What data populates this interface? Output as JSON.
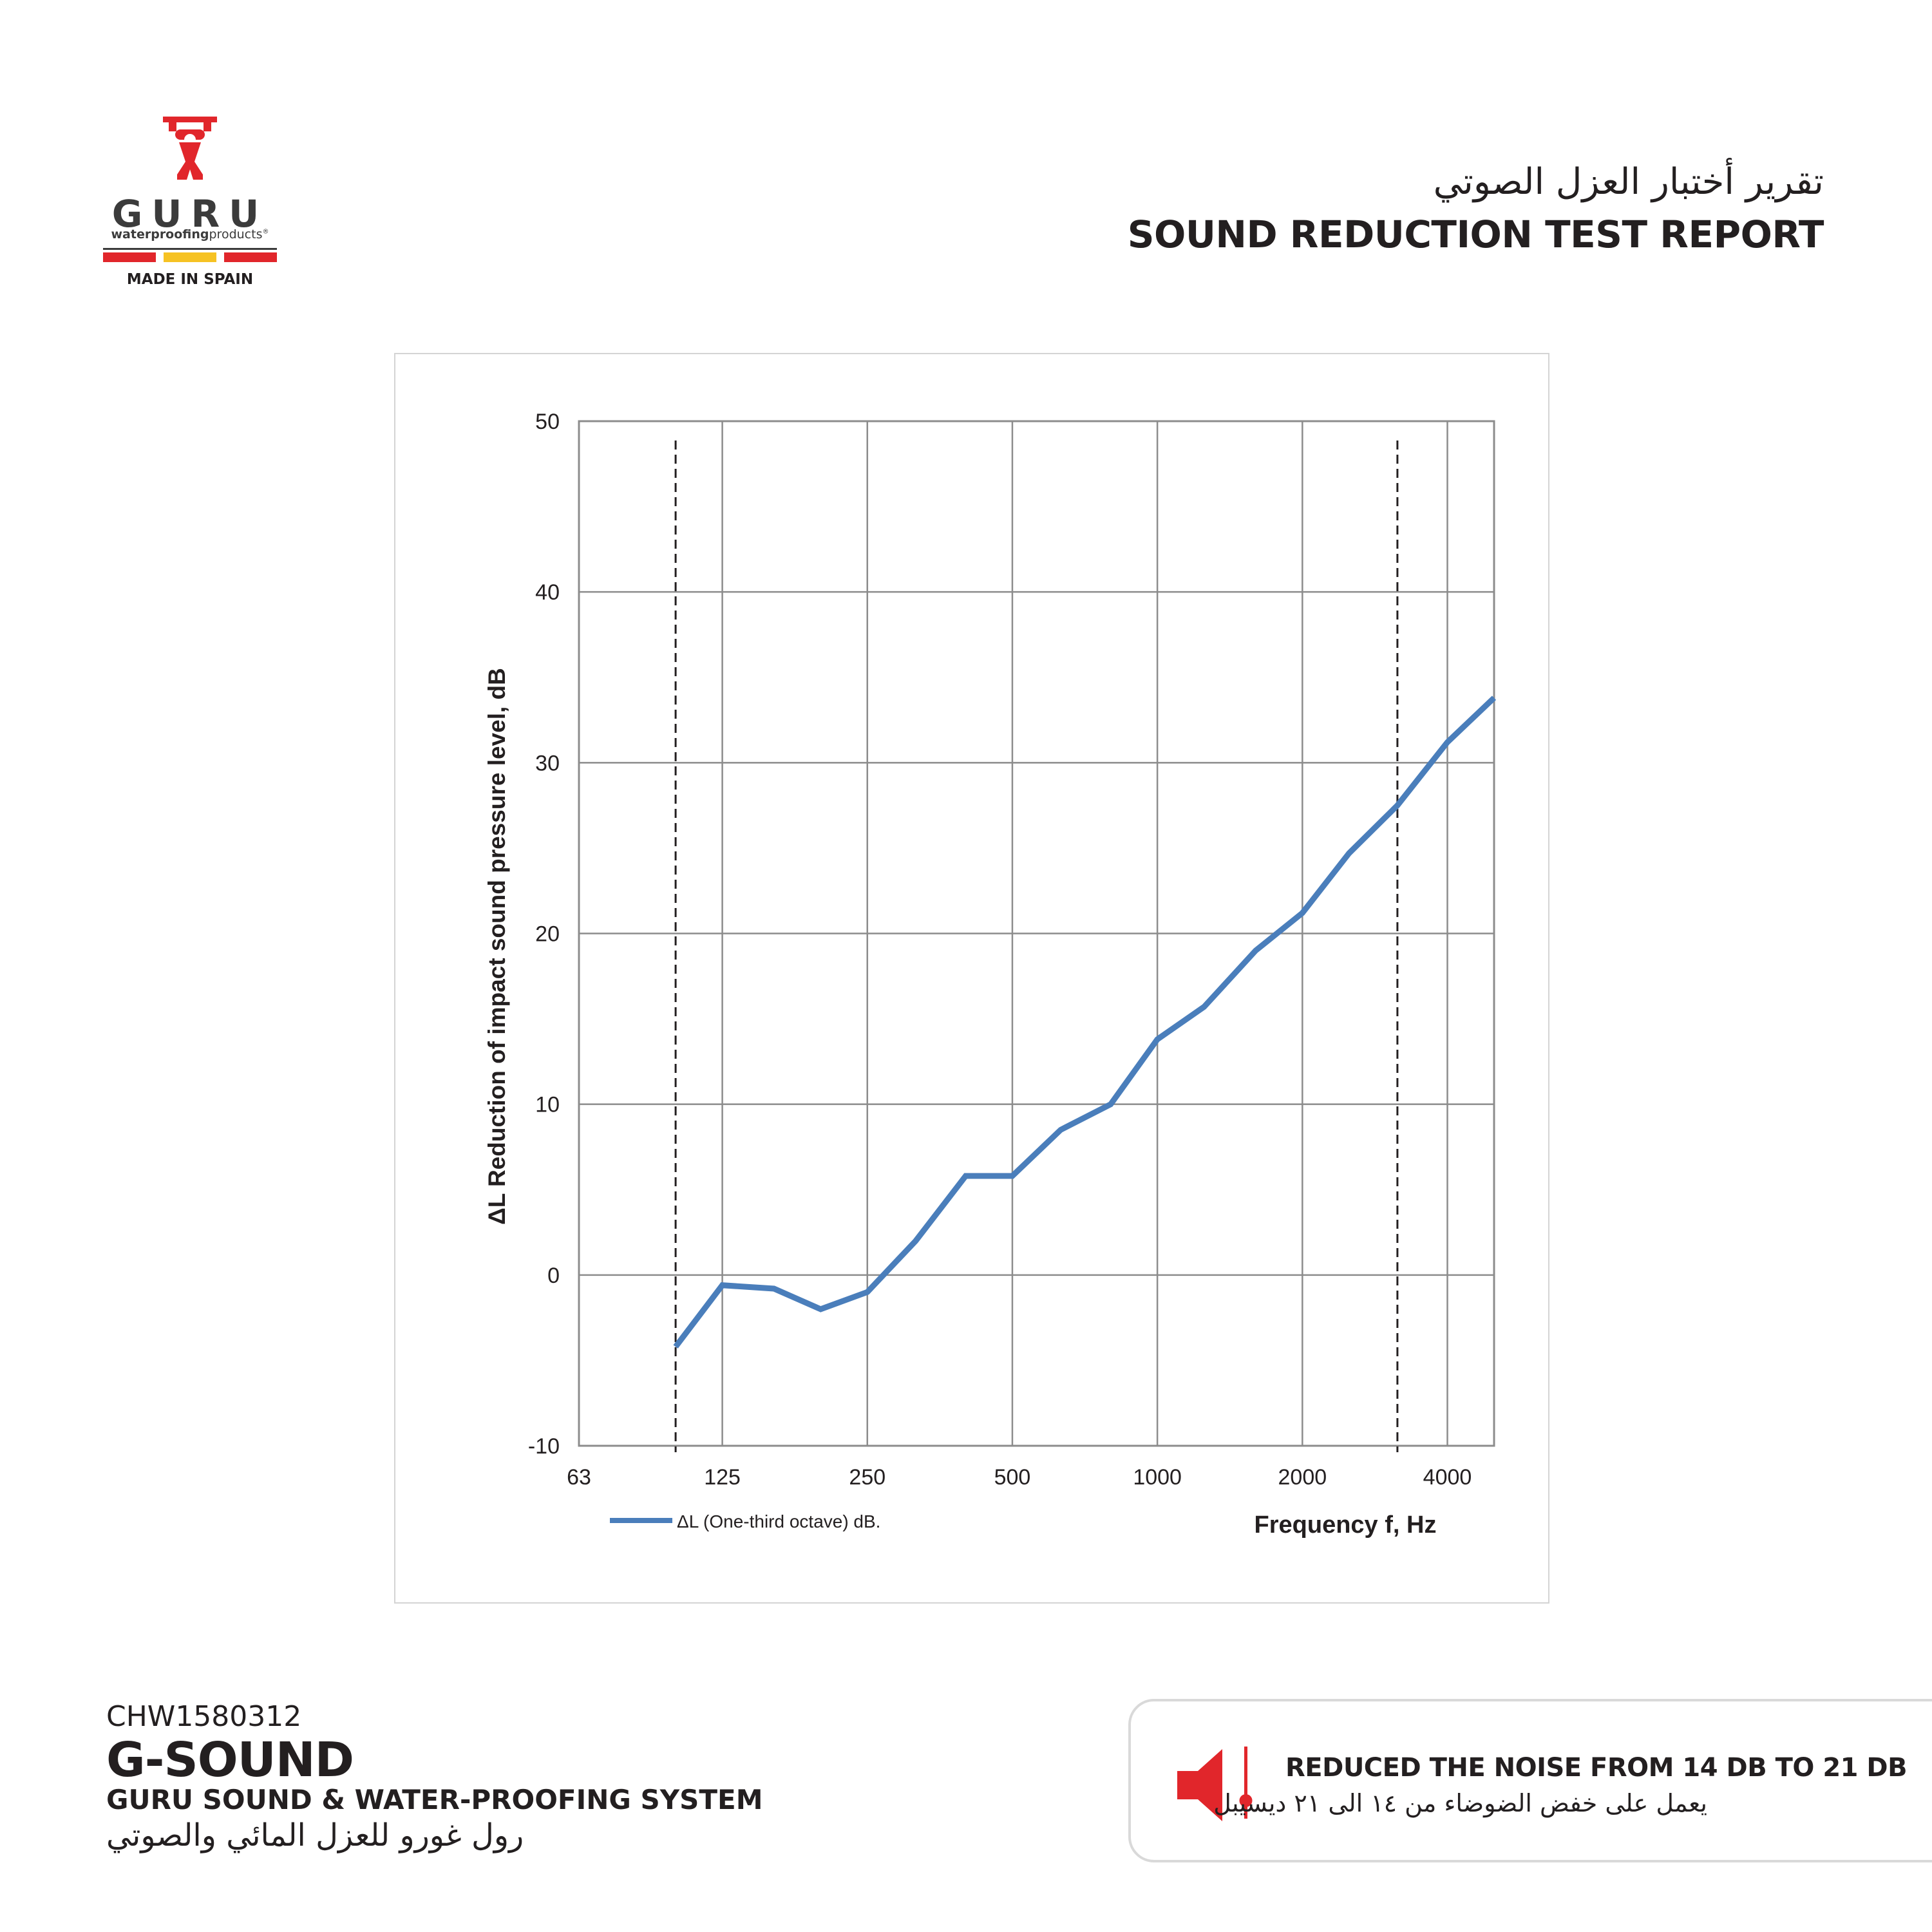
{
  "brand": {
    "name": "GURU",
    "tagline_bold": "waterproofing",
    "tagline_rest": "products",
    "origin": "MADE IN SPAIN",
    "colors": {
      "red": "#e1262b",
      "yellow": "#f6c223",
      "dark": "#3b3b3b"
    }
  },
  "header": {
    "title_ar": "تقرير أختبار العزل الصوتي",
    "title_en": "SOUND REDUCTION TEST REPORT"
  },
  "chart_data": {
    "type": "line",
    "xlabel": "Frequency f, Hz",
    "ylabel": "ΔL  Reduction of impact sound pressure level, dB",
    "x_scale": "log",
    "xlim": [
      63,
      5000
    ],
    "ylim": [
      -10,
      50
    ],
    "x_ticks": [
      "63",
      "125",
      "250",
      "500",
      "1000",
      "2000",
      "4000"
    ],
    "y_ticks": [
      "50",
      "40",
      "30",
      "20",
      "10",
      "0",
      "-10"
    ],
    "grid": true,
    "legend_position": "bottom-left",
    "reference_lines_x": [
      100,
      3150
    ],
    "series": [
      {
        "name": "ΔL (One-third octave) dB.",
        "color": "#4a7ebb",
        "x": [
          100,
          125,
          160,
          200,
          250,
          315,
          400,
          500,
          630,
          800,
          1000,
          1250,
          1600,
          2000,
          2500,
          3150,
          4000,
          5000
        ],
        "y": [
          -4.2,
          -0.6,
          -0.8,
          -2.0,
          -1.0,
          2.0,
          5.8,
          5.8,
          8.5,
          10.0,
          13.8,
          15.7,
          19.0,
          21.2,
          24.7,
          27.5,
          31.2,
          33.8
        ]
      }
    ]
  },
  "product": {
    "code": "CHW1580312",
    "name": "G-SOUND",
    "subtitle": "GURU SOUND & WATER-PROOFING  SYSTEM",
    "subtitle_ar": "رول غورو للعزل المائي والصوتي"
  },
  "noise": {
    "text_en": "REDUCED THE NOISE FROM 14 DB TO 21 DB",
    "text_ar": "يعمل على خفض الضوضاء من ١٤ الى ٢١ ديسيبل",
    "icon": "speaker-icon",
    "icon_color": "#e1262b"
  }
}
